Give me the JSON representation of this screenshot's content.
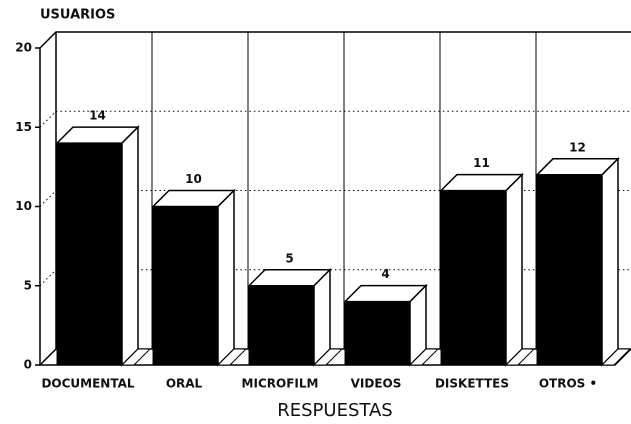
{
  "chart_data": {
    "type": "bar3d",
    "y_label": "USUARIOS",
    "x_label": "RESPUESTAS",
    "categories": [
      "DOCUMENTAL",
      "ORAL",
      "MICROFILM",
      "VIDEOS",
      "DISKETTES",
      "OTROS •"
    ],
    "values": [
      14,
      10,
      5,
      4,
      11,
      12
    ],
    "color": "#000000",
    "ylim": [
      0,
      20
    ],
    "yticks": [
      0,
      5,
      10,
      15,
      20
    ],
    "grid": true
  }
}
